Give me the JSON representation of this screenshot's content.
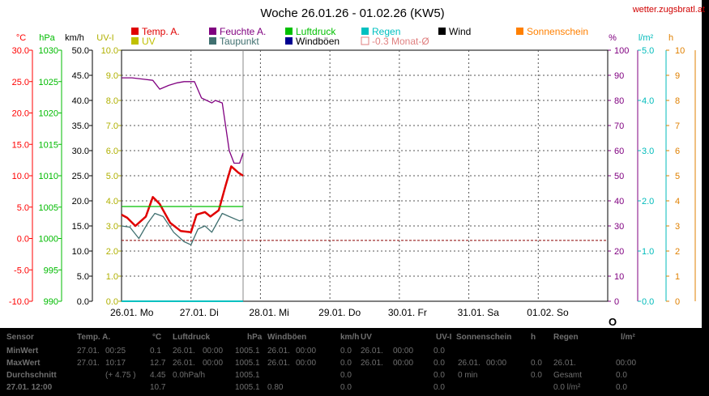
{
  "header": {
    "title": "Woche 26.01.26 - 01.02.26 (KW5)",
    "site": "wetter.zugsbratl.at"
  },
  "colors": {
    "temp": "#e00000",
    "humidity": "#800080",
    "pressure": "#00c000",
    "rain": "#00c0c0",
    "wind": "#000000",
    "sunshine": "#ff8000",
    "uv": "#c0c000",
    "dewpoint": "#407070",
    "gust": "#000090",
    "monthavg": "#e08080",
    "axis_temp": "#ff0000",
    "axis_press": "#00bb00",
    "axis_wind": "#000000",
    "axis_uv": "#b0b000",
    "axis_hum": "#800080",
    "axis_rain": "#00bbbb",
    "axis_sun": "#e08000"
  },
  "legend": [
    {
      "key": "temp",
      "label": "Temp. A."
    },
    {
      "key": "humidity",
      "label": "Feuchte A."
    },
    {
      "key": "pressure",
      "label": "Luftdruck"
    },
    {
      "key": "rain",
      "label": "Regen"
    },
    {
      "key": "wind",
      "label": "Wind"
    },
    {
      "key": "sunshine",
      "label": "Sonnenschein"
    },
    {
      "key": "uv",
      "label": "UV"
    },
    {
      "key": "dewpoint",
      "label": "Taupunkt"
    },
    {
      "key": "gust",
      "label": "Windböen"
    },
    {
      "key": "monthavg",
      "label": "-0.3 Monat-Ø"
    }
  ],
  "axis_units": {
    "temp": "°C",
    "press": "hPa",
    "wind": "km/h",
    "uv": "UV-I",
    "hum": "%",
    "rain": "l/m²",
    "sun": "h"
  },
  "chart_data": {
    "type": "line",
    "x_type": "date",
    "x_ticks": [
      "26.01. Mo",
      "27.01. Di",
      "28.01. Mi",
      "29.01. Do",
      "30.01. Fr",
      "31.01. Sa",
      "01.02. So"
    ],
    "axes": {
      "temp": {
        "ticks": [
          "30.0",
          "25.0",
          "20.0",
          "15.0",
          "10.0",
          "5.0",
          "0.0",
          "-5.0",
          "-10.0"
        ],
        "range": [
          -10,
          30
        ]
      },
      "press": {
        "ticks": [
          "1030",
          "1025",
          "1020",
          "1015",
          "1010",
          "1005",
          "1000",
          "995",
          "990"
        ],
        "range": [
          990,
          1030
        ]
      },
      "wind": {
        "ticks": [
          "50.0",
          "45.0",
          "40.0",
          "35.0",
          "30.0",
          "25.0",
          "20.0",
          "15.0",
          "10.0",
          "5.0",
          "0.0"
        ],
        "range": [
          0,
          50
        ]
      },
      "uv": {
        "ticks": [
          "10.0",
          "9.0",
          "8.0",
          "7.0",
          "6.0",
          "5.0",
          "4.0",
          "3.0",
          "2.0",
          "1.0",
          "0.0"
        ],
        "range": [
          0,
          10
        ]
      },
      "hum": {
        "ticks": [
          "100",
          "90",
          "80",
          "70",
          "60",
          "50",
          "40",
          "30",
          "20",
          "10",
          "0"
        ],
        "range": [
          0,
          100
        ]
      },
      "rain": {
        "ticks": [
          "5.0",
          "4.0",
          "3.0",
          "2.0",
          "1.0",
          "0.0"
        ],
        "range": [
          0,
          5
        ]
      },
      "sun": {
        "ticks": [
          "10",
          "9",
          "8",
          "7",
          "6",
          "5",
          "4",
          "3",
          "2",
          "1",
          "0"
        ],
        "range": [
          0,
          10
        ]
      }
    },
    "grid": true,
    "series": [
      {
        "name": "Temp. A.",
        "axis": "temp",
        "points": [
          [
            0,
            3.8
          ],
          [
            0.08,
            3.3
          ],
          [
            0.2,
            2.0
          ],
          [
            0.35,
            3.5
          ],
          [
            0.45,
            6.6
          ],
          [
            0.55,
            5.5
          ],
          [
            0.7,
            2.5
          ],
          [
            0.85,
            1.2
          ],
          [
            1.0,
            1.0
          ],
          [
            1.08,
            3.8
          ],
          [
            1.2,
            4.2
          ],
          [
            1.28,
            3.5
          ],
          [
            1.4,
            4.5
          ],
          [
            1.5,
            8.5
          ],
          [
            1.58,
            11.5
          ],
          [
            1.68,
            10.5
          ],
          [
            1.75,
            10.0
          ]
        ]
      },
      {
        "name": "Taupunkt",
        "axis": "temp",
        "points": [
          [
            0,
            2.0
          ],
          [
            0.12,
            1.8
          ],
          [
            0.25,
            0.0
          ],
          [
            0.38,
            2.5
          ],
          [
            0.48,
            4.0
          ],
          [
            0.6,
            3.5
          ],
          [
            0.75,
            1.0
          ],
          [
            0.9,
            -0.5
          ],
          [
            1.0,
            -1.0
          ],
          [
            1.1,
            1.5
          ],
          [
            1.2,
            2.0
          ],
          [
            1.3,
            1.0
          ],
          [
            1.45,
            4.0
          ],
          [
            1.55,
            3.5
          ],
          [
            1.7,
            2.8
          ],
          [
            1.75,
            3.0
          ]
        ]
      },
      {
        "name": "Feuchte A.",
        "axis": "hum",
        "points": [
          [
            0,
            89
          ],
          [
            0.15,
            89
          ],
          [
            0.3,
            88.5
          ],
          [
            0.45,
            88
          ],
          [
            0.55,
            84.5
          ],
          [
            0.68,
            86
          ],
          [
            0.8,
            87
          ],
          [
            0.9,
            87.5
          ],
          [
            1.0,
            87.5
          ],
          [
            1.05,
            87.5
          ],
          [
            1.15,
            81
          ],
          [
            1.3,
            79
          ],
          [
            1.35,
            80
          ],
          [
            1.45,
            79
          ],
          [
            1.55,
            60
          ],
          [
            1.62,
            55
          ],
          [
            1.7,
            55
          ],
          [
            1.75,
            59
          ]
        ]
      },
      {
        "name": "Luftdruck",
        "axis": "press",
        "points": [
          [
            0,
            1005.1
          ],
          [
            1.75,
            1005.1
          ]
        ]
      },
      {
        "name": "Regen",
        "axis": "rain",
        "points": [
          [
            0,
            0.0
          ],
          [
            1.75,
            0.0
          ]
        ]
      }
    ],
    "month_avg_temp": -0.3
  },
  "status": {
    "circle": "O"
  },
  "stats": {
    "headers": [
      "Sensor",
      "Temp. A.",
      "°C",
      "Luftdruck",
      "hPa",
      "Windböen",
      "km/h",
      "UV",
      "UV-I",
      "Sonnenschein",
      "h",
      "Regen",
      "l/m²"
    ],
    "rows": [
      [
        "MinWert",
        "27.01.",
        "00:25",
        "0.1",
        "26.01.",
        "00:00",
        "1005.1",
        "26.01.",
        "00:00",
        "0.0",
        "26.01.",
        "00:00",
        "0.0",
        "",
        "",
        "",
        "",
        ""
      ],
      [
        "MaxWert",
        "27.01.",
        "10:17",
        "12.7",
        "26.01.",
        "00:00",
        "1005.1",
        "26.01.",
        "00:00",
        "0.0",
        "26.01.",
        "00:00",
        "0.0",
        "26.01.",
        "00:00",
        "0.0",
        "26.01.",
        "00:00"
      ],
      [
        "Durchschnitt",
        "",
        "(+ 4.75 )",
        "4.45",
        "0.0hPa/h",
        "",
        "1005.1",
        "",
        "",
        "0.0",
        "",
        "",
        "0.0",
        "0 min",
        "",
        "0.0",
        "Gesamt",
        "0.0"
      ],
      [
        "27.01. 12:00",
        "",
        "",
        "10.7",
        "",
        "",
        "1005.1",
        "0.80",
        "",
        "0.0",
        "",
        "",
        "0.0",
        "",
        "",
        "",
        "0.0 l/m²",
        "0.0"
      ]
    ]
  }
}
